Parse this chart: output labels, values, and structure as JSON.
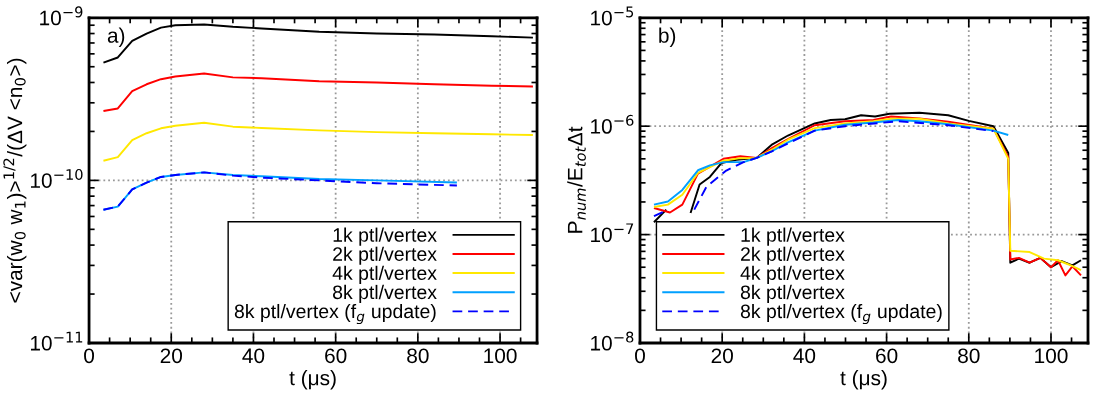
{
  "chart_data": [
    {
      "type": "line",
      "xlabel": "t (μs)",
      "ylabel": "<var(w$_{0}$ w$_{1}$)>$^{1/2}$/(ΔV <n$_{0}$>)",
      "annotations": [
        "a)"
      ],
      "log": "y",
      "grid": true,
      "legend": "bottom right",
      "xlim": [
        0,
        109
      ],
      "xticks": [
        0,
        20,
        40,
        60,
        80,
        100
      ],
      "ylim": [
        1e-11,
        1e-09
      ],
      "yticks": [
        {
          "value": 1e-11,
          "label": "10$^{−11}$"
        },
        {
          "value": 1e-10,
          "label": "10$^{−10}$"
        },
        {
          "value": 1e-09,
          "label": "10$^{−9}$"
        }
      ],
      "series": [
        {
          "name": "1k ptl/vertex",
          "color": "#000000",
          "line_style": "solid",
          "x": [
            3.5,
            7,
            10.5,
            14,
            17.5,
            21,
            28,
            35,
            42,
            56,
            70,
            84,
            98,
            108
          ],
          "values": [
            5.3e-10,
            5.7e-10,
            7.2e-10,
            8e-10,
            8.7e-10,
            9e-10,
            9.1e-10,
            8.8e-10,
            8.6e-10,
            8.2e-10,
            8e-10,
            7.9e-10,
            7.7e-10,
            7.55e-10
          ]
        },
        {
          "name": "2k ptl/vertex",
          "color": "#ff0000",
          "line_style": "solid",
          "x": [
            3.5,
            7,
            10.5,
            14,
            17.5,
            21,
            28,
            35,
            42,
            56,
            70,
            84,
            98,
            108
          ],
          "values": [
            2.67e-10,
            2.77e-10,
            3.54e-10,
            3.9e-10,
            4.19e-10,
            4.35e-10,
            4.54e-10,
            4.3e-10,
            4.25e-10,
            4.07e-10,
            4e-10,
            3.9e-10,
            3.82e-10,
            3.78e-10
          ]
        },
        {
          "name": "4k ptl/vertex",
          "color": "#ffe800",
          "line_style": "solid",
          "x": [
            3.5,
            7,
            10.5,
            14,
            17.5,
            21,
            28,
            35,
            42,
            56,
            70,
            84,
            98,
            108
          ],
          "values": [
            1.32e-10,
            1.39e-10,
            1.77e-10,
            1.95e-10,
            2.09e-10,
            2.17e-10,
            2.26e-10,
            2.14e-10,
            2.1e-10,
            2.03e-10,
            1.98e-10,
            1.95e-10,
            1.92e-10,
            1.9e-10
          ]
        },
        {
          "name": "8k ptl/vertex",
          "color": "#00a0ff",
          "line_style": "solid",
          "x": [
            3.5,
            7,
            10.5,
            14,
            17.5,
            21,
            28,
            35,
            42,
            56,
            70,
            89.5
          ],
          "values": [
            6.6e-11,
            6.9e-11,
            8.8e-11,
            9.7e-11,
            1.05e-10,
            1.08e-10,
            1.12e-10,
            1.08e-10,
            1.06e-10,
            1.02e-10,
            1e-10,
            9.7e-11
          ]
        },
        {
          "name": "8k ptl/vertex (f$_{g}$ update)",
          "color": "#0000ff",
          "line_style": "dashed",
          "x": [
            3.5,
            7,
            10.5,
            14,
            17.5,
            21,
            28,
            35,
            42,
            56,
            70,
            89.5
          ],
          "values": [
            6.6e-11,
            6.9e-11,
            8.8e-11,
            9.7e-11,
            1.05e-10,
            1.08e-10,
            1.12e-10,
            1.07e-10,
            1.04e-10,
            1e-10,
            9.6e-11,
            9.3e-11
          ]
        }
      ]
    },
    {
      "type": "line",
      "xlabel": "t (μs)",
      "ylabel": "P$_{num}$/E$_{tot}$Δt",
      "annotations": [
        "b)"
      ],
      "log": "y",
      "grid": true,
      "legend": "bottom left",
      "xlim": [
        0,
        109
      ],
      "xticks": [
        0,
        20,
        40,
        60,
        80,
        100
      ],
      "ylim": [
        1e-08,
        1e-05
      ],
      "yticks": [
        {
          "value": 1e-08,
          "label": "10$^{−8}$"
        },
        {
          "value": 1e-07,
          "label": "10$^{−7}$"
        },
        {
          "value": 1e-06,
          "label": "10$^{−6}$"
        },
        {
          "value": 1e-05,
          "label": "10$^{−5}$"
        }
      ],
      "series": [
        {
          "name": "1k ptl/vertex",
          "color": "#000000",
          "line_style": "solid",
          "x": [
            3.4,
            6.4,
            10,
            12.3,
            14.5,
            17,
            19.8,
            23.5,
            28.4,
            32.2,
            36,
            42.5,
            46.4,
            49.9,
            53.8,
            57.2,
            60.7,
            68,
            75,
            80,
            86,
            89.6,
            90.1,
            92.2,
            94.8,
            97.4,
            100,
            102.6,
            105.2,
            107.3
          ],
          "values": [
            1.3e-07,
            1.7e-07,
            null,
            1.58e-07,
            2.9e-07,
            3.4e-07,
            4.57e-07,
            4.9e-07,
            5.1e-07,
            6.8e-07,
            8.2e-07,
            1.06e-06,
            1.14e-06,
            1.16e-06,
            1.26e-06,
            1.23e-06,
            1.3e-06,
            1.33e-06,
            1.26e-06,
            1.12e-06,
            1e-06,
            5.65e-07,
            5.5e-08,
            6e-08,
            5.5e-08,
            6.1e-08,
            5e-08,
            5.7e-08,
            5.2e-08,
            5.8e-08
          ]
        },
        {
          "name": "2k ptl/vertex",
          "color": "#ff0000",
          "line_style": "solid",
          "x": [
            3.4,
            7.3,
            10.3,
            14.1,
            20.3,
            24.4,
            28.4,
            32.2,
            36,
            42.5,
            49.9,
            56.8,
            61.1,
            68,
            75,
            86,
            89.6,
            90.1,
            92.2,
            94.8,
            97.4,
            100,
            101.7,
            103.5,
            105.2,
            107.3
          ],
          "values": [
            1.76e-07,
            1.6e-07,
            1.89e-07,
            3.65e-07,
            5e-07,
            5.28e-07,
            5.1e-07,
            6.3e-07,
            7.6e-07,
            1.02e-06,
            1.11e-06,
            1.14e-06,
            1.23e-06,
            1.18e-06,
            1.1e-06,
            9.5e-07,
            5.2e-07,
            5.9e-08,
            6.1e-08,
            5.5e-08,
            6.1e-08,
            5e-08,
            5.8e-08,
            4.2e-08,
            5.1e-08,
            4.2e-08
          ]
        },
        {
          "name": "4k ptl/vertex",
          "color": "#ffe800",
          "line_style": "solid",
          "x": [
            3.4,
            6.8,
            10.3,
            14.1,
            20.3,
            24.4,
            28.4,
            32.2,
            36,
            42.5,
            49.9,
            56.8,
            61.1,
            68,
            75,
            86,
            89.6,
            90.1,
            94.8,
            98.3,
            101.7,
            104.3,
            107.3
          ],
          "values": [
            1.8e-07,
            1.89e-07,
            2.33e-07,
            3.7e-07,
            4.8e-07,
            5.07e-07,
            5.1e-07,
            6.1e-07,
            7.5e-07,
            9.6e-07,
            1.06e-06,
            1.11e-06,
            1.17e-06,
            1.17e-06,
            1.06e-06,
            9.5e-07,
            5e-07,
            7.1e-08,
            6.9e-08,
            6e-08,
            5.8e-08,
            5.3e-08,
            4.7e-08
          ]
        },
        {
          "name": "8k ptl/vertex",
          "color": "#00a0ff",
          "line_style": "solid",
          "x": [
            3.4,
            6.8,
            10.3,
            14.1,
            17,
            20.3,
            25.2,
            28.4,
            32.2,
            36,
            42.5,
            49.9,
            56.8,
            62.8,
            68,
            75,
            86,
            89.6
          ],
          "values": [
            1.89e-07,
            2.02e-07,
            2.58e-07,
            3.92e-07,
            4.35e-07,
            4.66e-07,
            4.66e-07,
            5.1e-07,
            5.9e-07,
            7.1e-07,
            9.1e-07,
            1.03e-06,
            1.08e-06,
            1.14e-06,
            1.11e-06,
            1.04e-06,
            9.1e-07,
            8.3e-07
          ]
        },
        {
          "name": "8k ptl/vertex (f$_{g}$ update)",
          "color": "#0000ff",
          "line_style": "dashed",
          "x": [
            3.4,
            6.8,
            10,
            13.2,
            16.2,
            21,
            25.2,
            28.4,
            32.2,
            42.5,
            49.9,
            62.8,
            75,
            86
          ],
          "values": [
            1.48e-07,
            1.7e-07,
            null,
            1.7e-07,
            2.77e-07,
            3.9e-07,
            4.66e-07,
            5.1e-07,
            5.9e-07,
            9.1e-07,
            1e-06,
            1.11e-06,
            1.02e-06,
            9e-07
          ]
        }
      ]
    }
  ]
}
